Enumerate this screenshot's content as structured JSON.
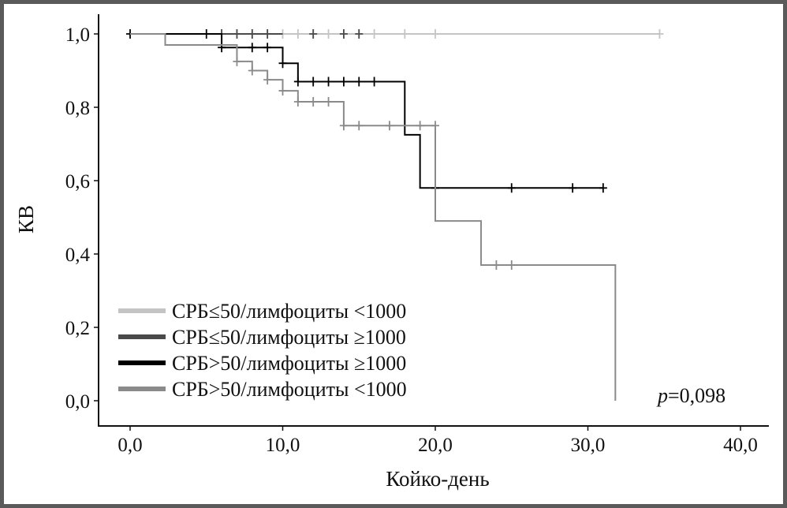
{
  "chart_data": {
    "type": "line",
    "subtype": "kaplan-meier",
    "xlabel": "Койко-день",
    "ylabel": "КВ",
    "xlim": [
      -2,
      42
    ],
    "ylim": [
      -0.02,
      1.05
    ],
    "x_ticks": [
      0,
      10,
      20,
      30,
      40
    ],
    "x_tick_labels": [
      "0,0",
      "10,0",
      "20,0",
      "30,0",
      "40,0"
    ],
    "y_ticks": [
      0,
      0.2,
      0.4,
      0.6,
      0.8,
      1.0
    ],
    "y_tick_labels": [
      "0,0",
      "0,2",
      "0,4",
      "0,6",
      "0,8",
      "1,0"
    ],
    "annotation": {
      "p_label": "p",
      "p_value": "=0,098"
    },
    "legend_position": "bottom-left",
    "series": [
      {
        "name": "СРБ≤50/лимфоциты <1000",
        "color": "#c4c4c4",
        "steps": [
          [
            0,
            1.0
          ],
          [
            34.7,
            1.0
          ]
        ],
        "censors": [
          [
            6,
            1.0
          ],
          [
            7,
            1.0
          ],
          [
            8,
            1.0
          ],
          [
            9,
            1.0
          ],
          [
            10,
            1.0
          ],
          [
            11,
            1.0
          ],
          [
            12,
            1.0
          ],
          [
            13,
            1.0
          ],
          [
            14,
            1.0
          ],
          [
            15,
            1.0
          ],
          [
            16,
            1.0
          ],
          [
            18,
            1.0
          ],
          [
            20,
            1.0
          ],
          [
            34.7,
            1.0
          ]
        ]
      },
      {
        "name": "СРБ≤50/лимфоциты ≥1000",
        "color": "#4a4a4a",
        "steps": [
          [
            0,
            1.0
          ],
          [
            10,
            1.0
          ]
        ],
        "censors": [
          [
            6,
            1.0
          ],
          [
            7,
            1.0
          ],
          [
            8,
            1.0
          ],
          [
            9,
            1.0
          ],
          [
            12,
            1.0
          ],
          [
            14,
            1.0
          ],
          [
            15,
            1.0
          ]
        ]
      },
      {
        "name": "СРБ>50/лимфоциты ≥1000",
        "color": "#000000",
        "steps": [
          [
            0,
            1.0
          ],
          [
            6,
            0.963
          ],
          [
            10,
            0.92
          ],
          [
            11,
            0.87
          ],
          [
            18,
            0.725
          ],
          [
            19,
            0.58
          ],
          [
            31,
            0.58
          ]
        ],
        "censors": [
          [
            0,
            1.0
          ],
          [
            5,
            1.0
          ],
          [
            6,
            0.963
          ],
          [
            8,
            0.963
          ],
          [
            9,
            0.963
          ],
          [
            10,
            0.92
          ],
          [
            11,
            0.87
          ],
          [
            12,
            0.87
          ],
          [
            13,
            0.87
          ],
          [
            14,
            0.87
          ],
          [
            15,
            0.87
          ],
          [
            16,
            0.87
          ],
          [
            20,
            0.58
          ],
          [
            25,
            0.58
          ],
          [
            29,
            0.58
          ],
          [
            31,
            0.58
          ]
        ]
      },
      {
        "name": "СРБ>50/лимфоциты <1000",
        "color": "#8a8a8a",
        "steps": [
          [
            0,
            1.0
          ],
          [
            2.3,
            0.97
          ],
          [
            7,
            0.925
          ],
          [
            8,
            0.9
          ],
          [
            9,
            0.875
          ],
          [
            10,
            0.845
          ],
          [
            11,
            0.815
          ],
          [
            14,
            0.75
          ],
          [
            20,
            0.49
          ],
          [
            23,
            0.37
          ],
          [
            31.8,
            0.37
          ],
          [
            31.8,
            0.0
          ]
        ],
        "censors": [
          [
            7,
            0.925
          ],
          [
            8,
            0.9
          ],
          [
            9,
            0.875
          ],
          [
            10,
            0.845
          ],
          [
            11,
            0.815
          ],
          [
            12,
            0.815
          ],
          [
            13,
            0.815
          ],
          [
            14,
            0.75
          ],
          [
            15,
            0.75
          ],
          [
            17,
            0.75
          ],
          [
            19,
            0.75
          ],
          [
            20,
            0.75
          ],
          [
            24,
            0.37
          ],
          [
            25,
            0.37
          ]
        ]
      }
    ]
  }
}
